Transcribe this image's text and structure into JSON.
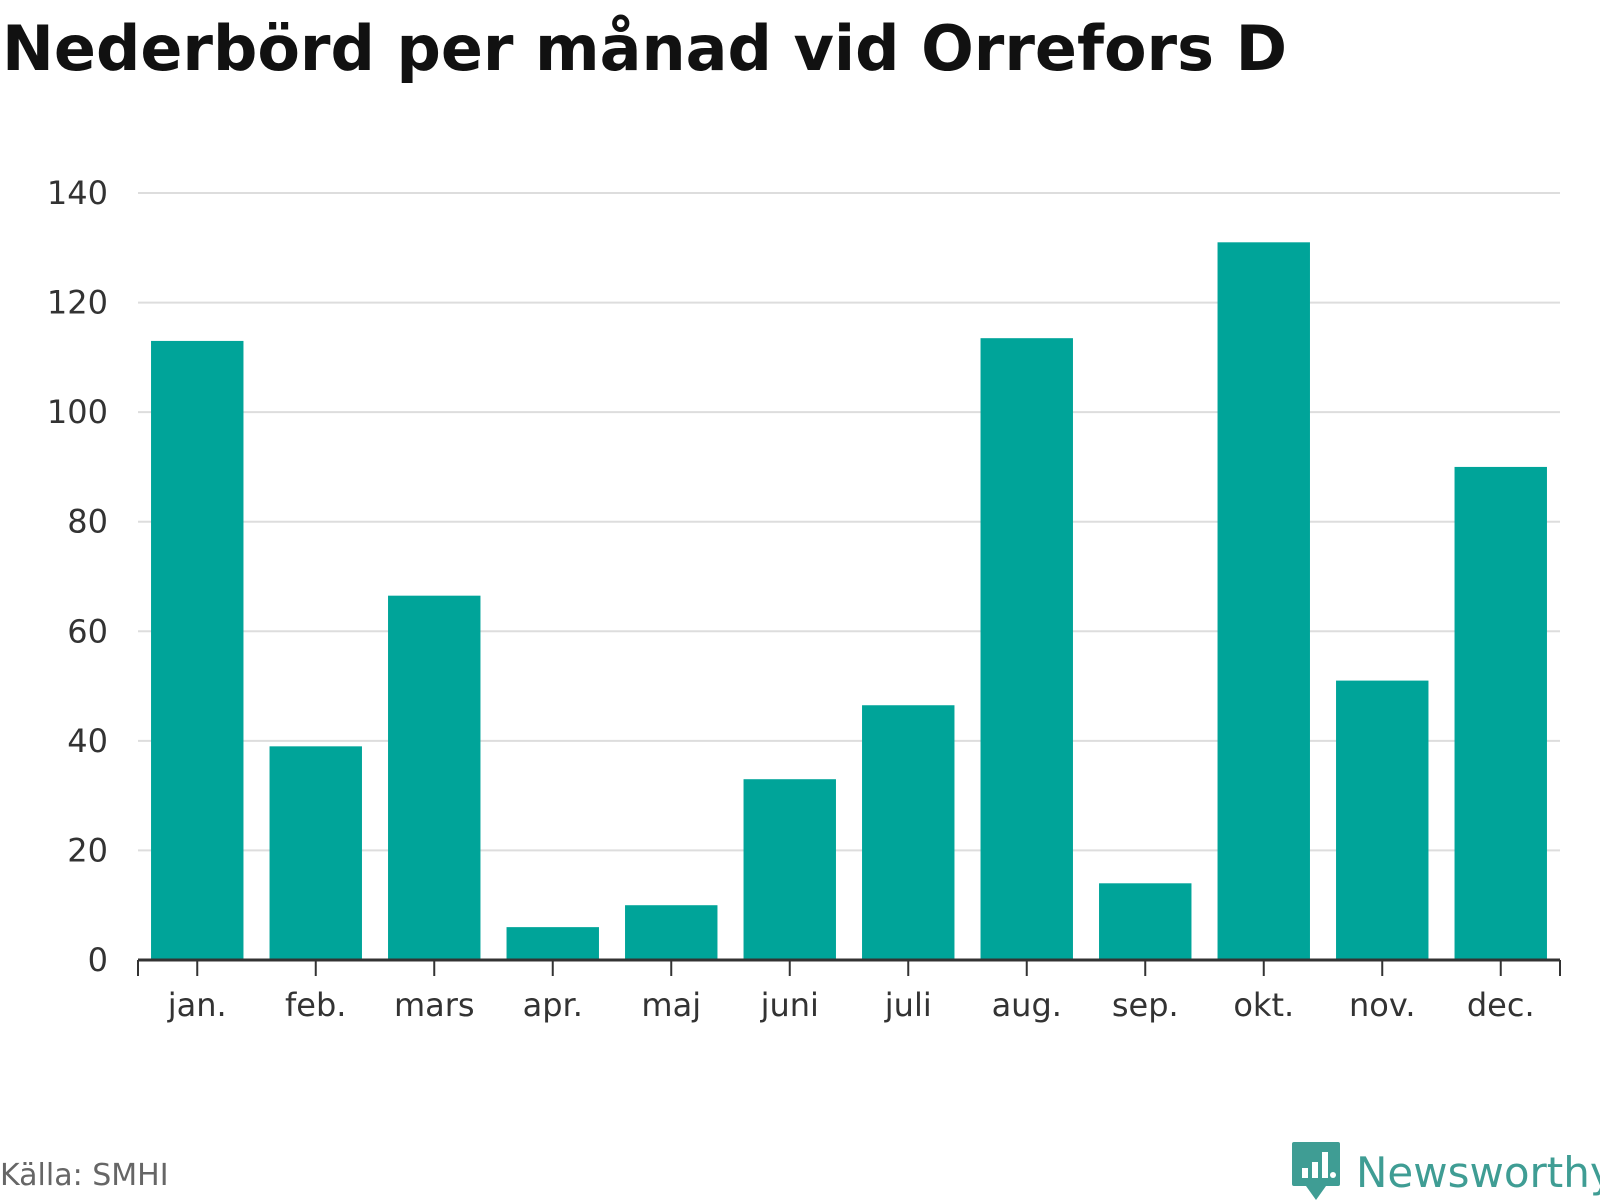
{
  "title": "Nederbörd per månad vid Orrefors D",
  "source": "Källa: SMHI",
  "brand": {
    "name": "Newsworthy",
    "icon": "newsworthy-logo-icon",
    "color": "#3f9d94"
  },
  "colors": {
    "bar": "#00a499",
    "grid": "#dddddd",
    "axis": "#333333"
  },
  "chart_data": {
    "type": "bar",
    "title": "Nederbörd per månad vid Orrefors D",
    "xlabel": "",
    "ylabel": "",
    "categories": [
      "jan.",
      "feb.",
      "mars",
      "apr.",
      "maj",
      "juni",
      "juli",
      "aug.",
      "sep.",
      "okt.",
      "nov.",
      "dec."
    ],
    "values": [
      113,
      39,
      66.5,
      6,
      10,
      33,
      46.5,
      113.5,
      14,
      131,
      51,
      90
    ],
    "ylim": [
      0,
      140
    ],
    "yticks": [
      "0",
      "20",
      "40",
      "60",
      "80",
      "100",
      "120",
      "140"
    ],
    "grid": true,
    "legend": "none"
  }
}
